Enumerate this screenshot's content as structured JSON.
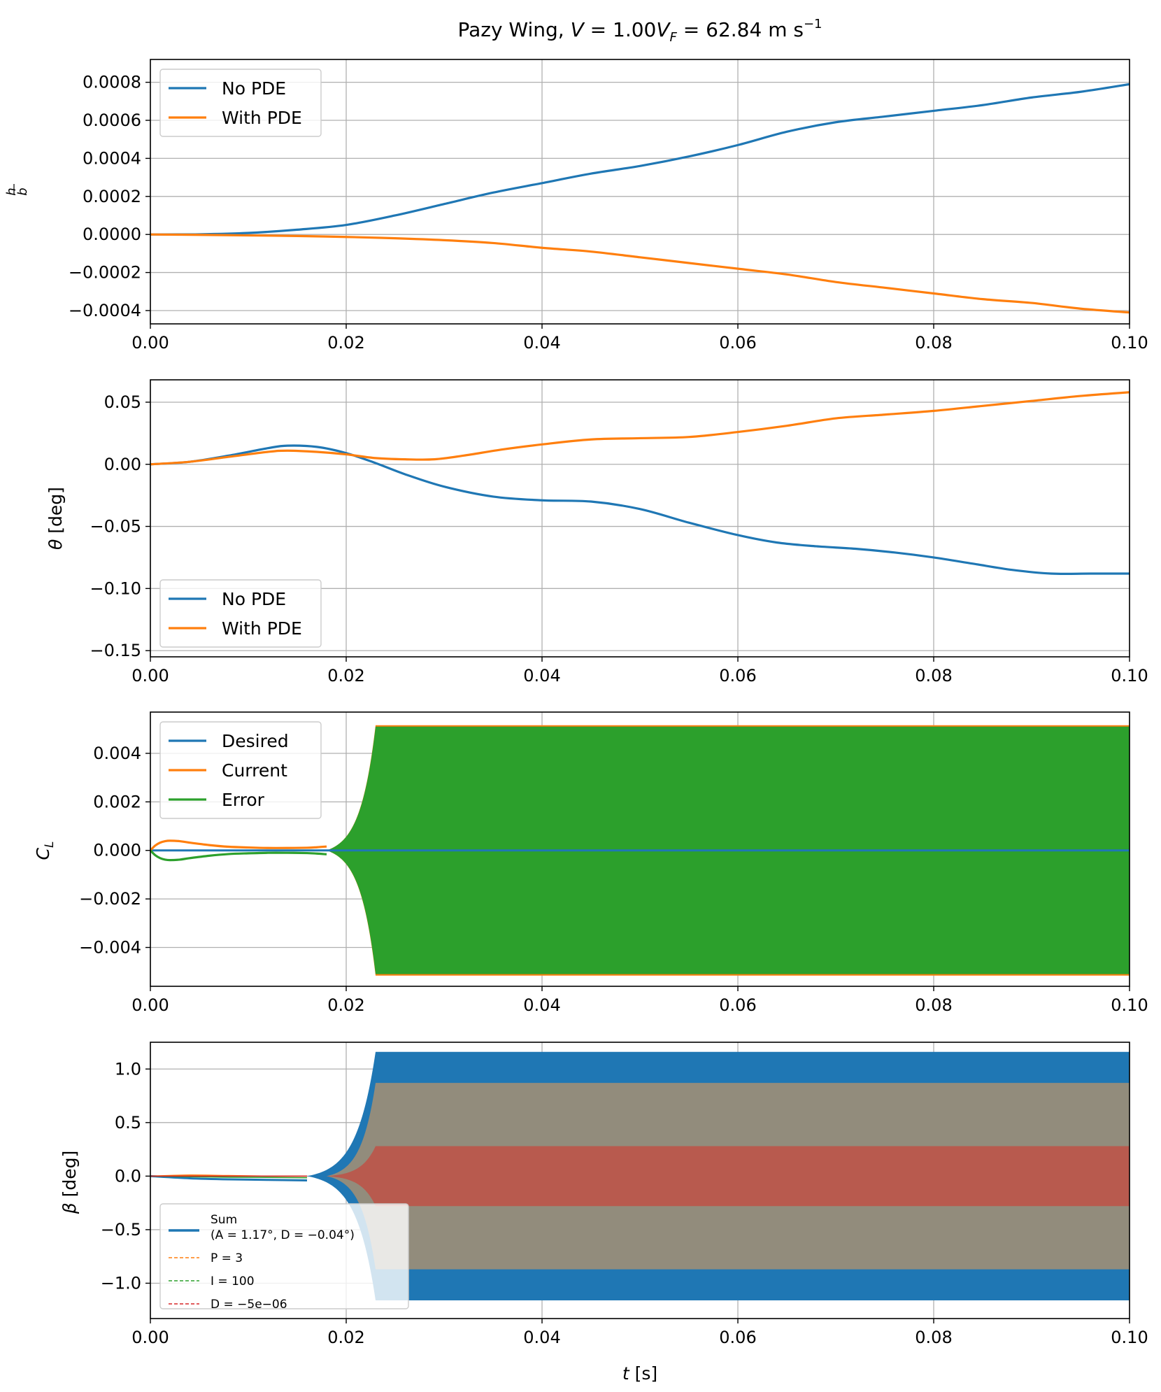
{
  "figure": {
    "title": "Pazy Wing, V = 1.00V_F = 62.84 m s^-1",
    "title_parts": {
      "pre": "Pazy Wing, ",
      "V": "V",
      "eq1": " = 1.00",
      "VF": "V",
      "VF_sub": "F",
      "eq2": " = 62.84 m s",
      "exp": "−1"
    },
    "xlabel": "t [s]",
    "xlabel_parts": {
      "var": "t",
      "unit": " [s]"
    }
  },
  "colors": {
    "blue": "#1f77b4",
    "orange": "#ff7f0e",
    "green": "#2ca02c",
    "red": "#d62728",
    "grid": "#b0b0b0"
  },
  "chart_data": [
    {
      "type": "line",
      "title": "Pazy Wing, V = 1.00V_F = 62.84 m s^-1",
      "xlabel": "t [s]",
      "ylabel": "h/b",
      "ylabel_parts": {
        "num": "h",
        "den": "b"
      },
      "xlim": [
        0,
        0.1
      ],
      "ylim": [
        -0.00047,
        0.00092
      ],
      "x_ticks": [
        0,
        0.02,
        0.04,
        0.06,
        0.08,
        0.1
      ],
      "x_tick_labels": [
        "0.00",
        "0.02",
        "0.04",
        "0.06",
        "0.08",
        "0.10"
      ],
      "y_ticks": [
        -0.0004,
        -0.0002,
        0,
        0.0002,
        0.0004,
        0.0006,
        0.0008
      ],
      "y_tick_labels": [
        "−0.0004",
        "−0.0002",
        "0.0000",
        "0.0002",
        "0.0004",
        "0.0006",
        "0.0008"
      ],
      "grid": true,
      "legend": "upper left",
      "series": [
        {
          "name": "No PDE",
          "color": "#1f77b4",
          "x": [
            0,
            0.005,
            0.01,
            0.015,
            0.02,
            0.025,
            0.03,
            0.035,
            0.04,
            0.045,
            0.05,
            0.055,
            0.06,
            0.065,
            0.07,
            0.075,
            0.08,
            0.085,
            0.09,
            0.095,
            0.1
          ],
          "y": [
            0,
            1e-06,
            8e-06,
            2.5e-05,
            5e-05,
            0.0001,
            0.00016,
            0.00022,
            0.00027,
            0.00032,
            0.00036,
            0.00041,
            0.00047,
            0.00054,
            0.00059,
            0.00062,
            0.00065,
            0.00068,
            0.00072,
            0.00075,
            0.00079
          ]
        },
        {
          "name": "With PDE",
          "color": "#ff7f0e",
          "x": [
            0,
            0.005,
            0.01,
            0.015,
            0.02,
            0.025,
            0.03,
            0.035,
            0.04,
            0.045,
            0.05,
            0.055,
            0.06,
            0.065,
            0.07,
            0.075,
            0.08,
            0.085,
            0.09,
            0.095,
            0.1
          ],
          "y": [
            0,
            -2e-06,
            -5e-06,
            -8e-06,
            -1.3e-05,
            -2e-05,
            -3e-05,
            -4.5e-05,
            -7e-05,
            -9e-05,
            -0.00012,
            -0.00015,
            -0.00018,
            -0.00021,
            -0.00025,
            -0.00028,
            -0.00031,
            -0.00034,
            -0.00036,
            -0.00039,
            -0.00041
          ]
        }
      ]
    },
    {
      "type": "line",
      "xlabel": "",
      "ylabel": "θ [deg]",
      "ylabel_parts": {
        "var": "θ",
        "unit": " [deg]"
      },
      "xlim": [
        0,
        0.1
      ],
      "ylim": [
        -0.155,
        0.068
      ],
      "x_ticks": [
        0,
        0.02,
        0.04,
        0.06,
        0.08,
        0.1
      ],
      "x_tick_labels": [
        "0.00",
        "0.02",
        "0.04",
        "0.06",
        "0.08",
        "0.10"
      ],
      "y_ticks": [
        -0.15,
        -0.1,
        -0.05,
        0,
        0.05
      ],
      "y_tick_labels": [
        "−0.15",
        "−0.10",
        "−0.05",
        "0.00",
        "0.05"
      ],
      "grid": true,
      "legend": "lower left",
      "series": [
        {
          "name": "No PDE",
          "color": "#1f77b4",
          "x": [
            0,
            0.004,
            0.008,
            0.012,
            0.014,
            0.017,
            0.02,
            0.023,
            0.026,
            0.03,
            0.035,
            0.04,
            0.045,
            0.05,
            0.055,
            0.06,
            0.064,
            0.068,
            0.072,
            0.076,
            0.08,
            0.084,
            0.088,
            0.092,
            0.096,
            0.1
          ],
          "y": [
            0,
            0.002,
            0.007,
            0.013,
            0.015,
            0.014,
            0.009,
            0.001,
            -0.008,
            -0.018,
            -0.026,
            -0.029,
            -0.03,
            -0.036,
            -0.047,
            -0.057,
            -0.063,
            -0.066,
            -0.068,
            -0.071,
            -0.075,
            -0.08,
            -0.085,
            -0.088,
            -0.088,
            -0.088
          ]
        },
        {
          "name": "With PDE",
          "color": "#ff7f0e",
          "x": [
            0,
            0.004,
            0.008,
            0.012,
            0.014,
            0.017,
            0.02,
            0.023,
            0.026,
            0.029,
            0.032,
            0.036,
            0.04,
            0.045,
            0.05,
            0.055,
            0.06,
            0.065,
            0.07,
            0.075,
            0.08,
            0.085,
            0.09,
            0.095,
            0.1
          ],
          "y": [
            0,
            0.002,
            0.006,
            0.01,
            0.011,
            0.01,
            0.008,
            0.005,
            0.004,
            0.004,
            0.007,
            0.012,
            0.016,
            0.02,
            0.021,
            0.022,
            0.026,
            0.031,
            0.037,
            0.04,
            0.043,
            0.047,
            0.051,
            0.055,
            0.058
          ]
        }
      ]
    },
    {
      "type": "line",
      "xlabel": "",
      "ylabel": "C_L",
      "ylabel_parts": {
        "var": "C",
        "sub": "L"
      },
      "xlim": [
        0,
        0.1
      ],
      "ylim": [
        -0.0056,
        0.0057
      ],
      "x_ticks": [
        0,
        0.02,
        0.04,
        0.06,
        0.08,
        0.1
      ],
      "x_tick_labels": [
        "0.00",
        "0.02",
        "0.04",
        "0.06",
        "0.08",
        "0.10"
      ],
      "y_ticks": [
        -0.004,
        -0.002,
        0,
        0.002,
        0.004
      ],
      "y_tick_labels": [
        "−0.004",
        "−0.002",
        "0.000",
        "0.002",
        "0.004"
      ],
      "grid": true,
      "legend": "upper left",
      "oscillation": {
        "onset_x": 0.018,
        "saturation_x": 0.023,
        "amplitude": 0.0051
      },
      "series": [
        {
          "name": "Desired",
          "color": "#1f77b4",
          "x": [
            0,
            0.1
          ],
          "y": [
            0,
            0
          ]
        },
        {
          "name": "Current",
          "color": "#ff7f0e",
          "x": [
            0,
            0.0005,
            0.001,
            0.0015,
            0.002,
            0.003,
            0.004,
            0.006,
            0.008,
            0.01,
            0.012,
            0.014,
            0.016,
            0.017,
            0.018
          ],
          "y": [
            0,
            0.0002,
            0.00032,
            0.00038,
            0.0004,
            0.00038,
            0.00032,
            0.00022,
            0.00015,
            0.00012,
            0.0001,
            0.0001,
            0.00011,
            0.00013,
            0.00016
          ]
        },
        {
          "name": "Error",
          "color": "#2ca02c",
          "x": [
            0,
            0.0005,
            0.001,
            0.0015,
            0.002,
            0.003,
            0.004,
            0.006,
            0.008,
            0.01,
            0.012,
            0.014,
            0.016,
            0.017,
            0.018
          ],
          "y": [
            0,
            -0.0002,
            -0.00032,
            -0.00038,
            -0.0004,
            -0.00038,
            -0.00032,
            -0.00022,
            -0.00015,
            -0.00012,
            -0.0001,
            -0.0001,
            -0.00011,
            -0.00013,
            -0.00016
          ]
        }
      ]
    },
    {
      "type": "line",
      "xlabel": "t [s]",
      "ylabel": "β [deg]",
      "ylabel_parts": {
        "var": "β",
        "unit": " [deg]"
      },
      "xlim": [
        0,
        0.1
      ],
      "ylim": [
        -1.33,
        1.25
      ],
      "x_ticks": [
        0,
        0.02,
        0.04,
        0.06,
        0.08,
        0.1
      ],
      "x_tick_labels": [
        "0.00",
        "0.02",
        "0.04",
        "0.06",
        "0.08",
        "0.10"
      ],
      "y_ticks": [
        -1,
        -0.5,
        0,
        0.5,
        1
      ],
      "y_tick_labels": [
        "−1.0",
        "−0.5",
        "0.0",
        "0.5",
        "1.0"
      ],
      "grid": true,
      "legend": "lower left",
      "oscillation": {
        "onset_x": 0.016,
        "saturation_x": 0.023,
        "amplitudes": {
          "Sum": 1.16,
          "P": 0.87,
          "I": 0.3,
          "D": 0.28
        }
      },
      "series": [
        {
          "name": "Sum",
          "label_line1": "Sum",
          "label_line2": "(A = 1.17°, D = −0.04°)",
          "color": "#1f77b4",
          "style": "solid"
        },
        {
          "name": "P = 3",
          "color": "#ff7f0e",
          "style": "dashed"
        },
        {
          "name": "I = 100",
          "color": "#2ca02c",
          "style": "dashed"
        },
        {
          "name": "D = −5e−06",
          "color": "#d62728",
          "style": "dashed"
        }
      ]
    }
  ]
}
